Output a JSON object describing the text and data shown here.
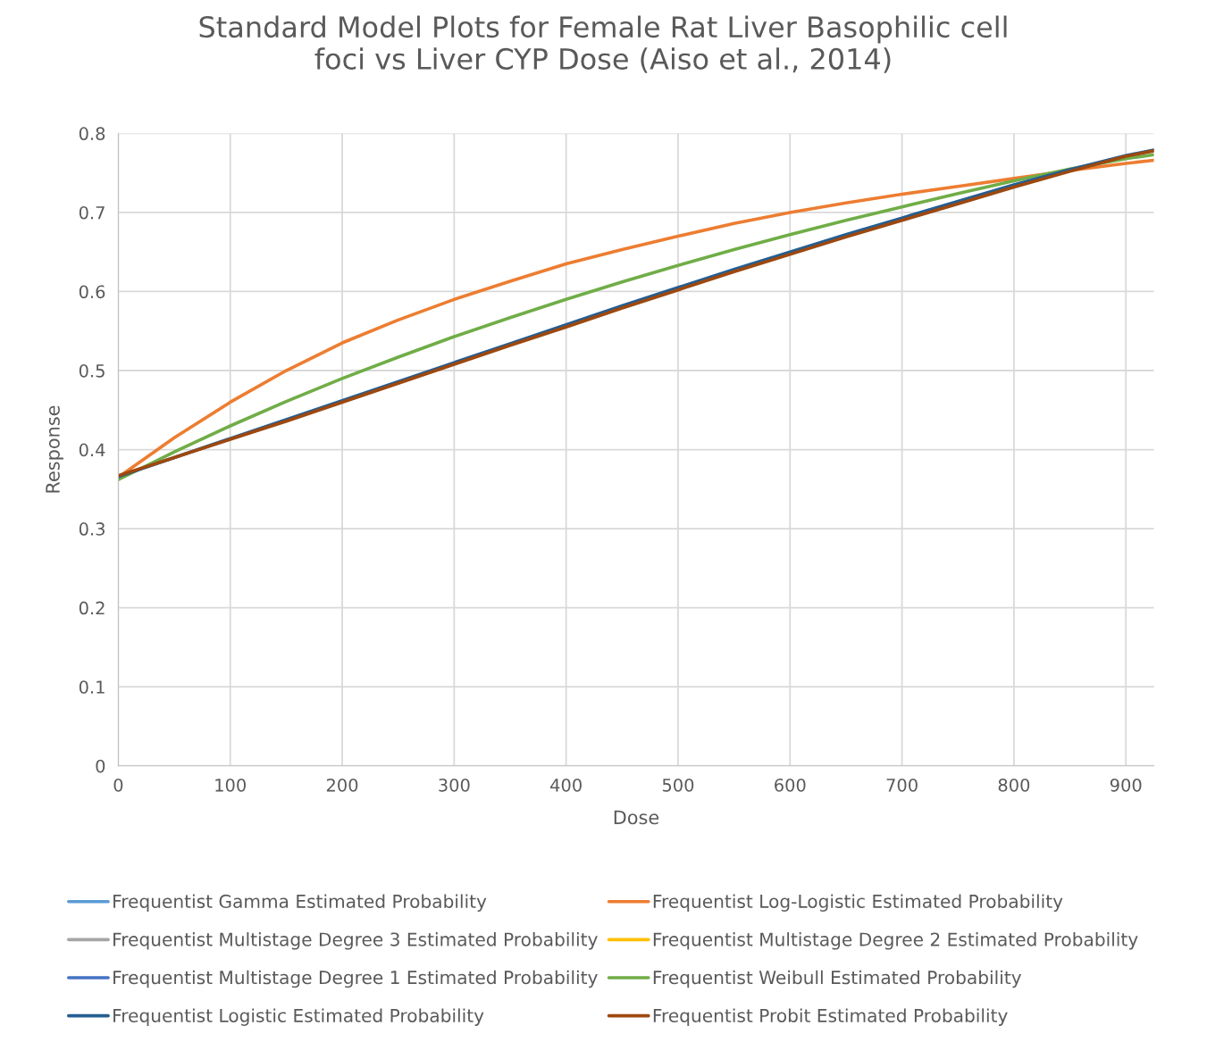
{
  "chart_data": {
    "type": "line",
    "title": "Standard Model Plots for Female Rat Liver Basophilic cell\nfoci vs Liver CYP Dose (Aiso et al., 2014)",
    "xlabel": "Dose",
    "ylabel": "Response",
    "x": [
      0,
      50,
      100,
      150,
      200,
      250,
      300,
      350,
      400,
      450,
      500,
      550,
      600,
      650,
      700,
      750,
      800,
      850,
      900,
      925
    ],
    "series": [
      {
        "name": "Frequentist Gamma Estimated Probability",
        "color": "#5b9bd5",
        "values": [
          null,
          null,
          null,
          null,
          null,
          null,
          null,
          null,
          null,
          null,
          null,
          null,
          null,
          null,
          null,
          null,
          null,
          null,
          null,
          null
        ]
      },
      {
        "name": "Frequentist Log-Logistic Estimated Probability",
        "color": "#ed7d31",
        "values": [
          0.365,
          0.415,
          0.46,
          0.5,
          0.535,
          0.564,
          0.59,
          0.613,
          0.635,
          0.653,
          0.67,
          0.686,
          0.7,
          0.712,
          0.723,
          0.733,
          0.743,
          0.753,
          0.762,
          0.766
        ]
      },
      {
        "name": "Frequentist Multistage Degree 3 Estimated Probability",
        "color": "#a5a5a5",
        "values": [
          null,
          null,
          null,
          null,
          null,
          null,
          null,
          null,
          null,
          null,
          null,
          null,
          null,
          null,
          null,
          null,
          null,
          null,
          null,
          null
        ]
      },
      {
        "name": "Frequentist Multistage Degree 2 Estimated Probability",
        "color": "#ffc000",
        "values": [
          null,
          null,
          null,
          null,
          null,
          null,
          null,
          null,
          null,
          null,
          null,
          null,
          null,
          null,
          null,
          null,
          null,
          null,
          null,
          null
        ]
      },
      {
        "name": "Frequentist Multistage Degree 1 Estimated Probability",
        "color": "#4472c4",
        "values": [
          null,
          null,
          null,
          null,
          null,
          null,
          null,
          null,
          null,
          null,
          null,
          null,
          null,
          null,
          null,
          null,
          null,
          null,
          null,
          null
        ]
      },
      {
        "name": "Frequentist Weibull Estimated Probability",
        "color": "#70ad47",
        "values": [
          0.362,
          0.397,
          0.43,
          0.461,
          0.49,
          0.517,
          0.543,
          0.567,
          0.59,
          0.612,
          0.633,
          0.653,
          0.672,
          0.69,
          0.707,
          0.724,
          0.74,
          0.755,
          0.768,
          0.773
        ]
      },
      {
        "name": "Frequentist Logistic Estimated Probability",
        "color": "#255e91",
        "values": [
          0.366,
          0.39,
          0.414,
          0.438,
          0.462,
          0.486,
          0.51,
          0.534,
          0.558,
          0.582,
          0.605,
          0.628,
          0.65,
          0.672,
          0.693,
          0.714,
          0.735,
          0.754,
          0.772,
          0.779
        ]
      },
      {
        "name": "Frequentist Probit Estimated Probability",
        "color": "#9e480e",
        "values": [
          0.367,
          0.39,
          0.413,
          0.436,
          0.46,
          0.484,
          0.508,
          0.532,
          0.555,
          0.579,
          0.602,
          0.625,
          0.647,
          0.669,
          0.69,
          0.711,
          0.732,
          0.752,
          0.771,
          0.778
        ]
      }
    ],
    "xlim": [
      0,
      925
    ],
    "ylim": [
      0,
      0.8
    ],
    "xticks": [
      0,
      100,
      200,
      300,
      400,
      500,
      600,
      700,
      800,
      900
    ],
    "yticks": [
      0,
      0.1,
      0.2,
      0.3,
      0.4,
      0.5,
      0.6,
      0.7,
      0.8
    ],
    "grid": true,
    "legend": "bottom",
    "marker": "none",
    "line_style": "solid"
  }
}
